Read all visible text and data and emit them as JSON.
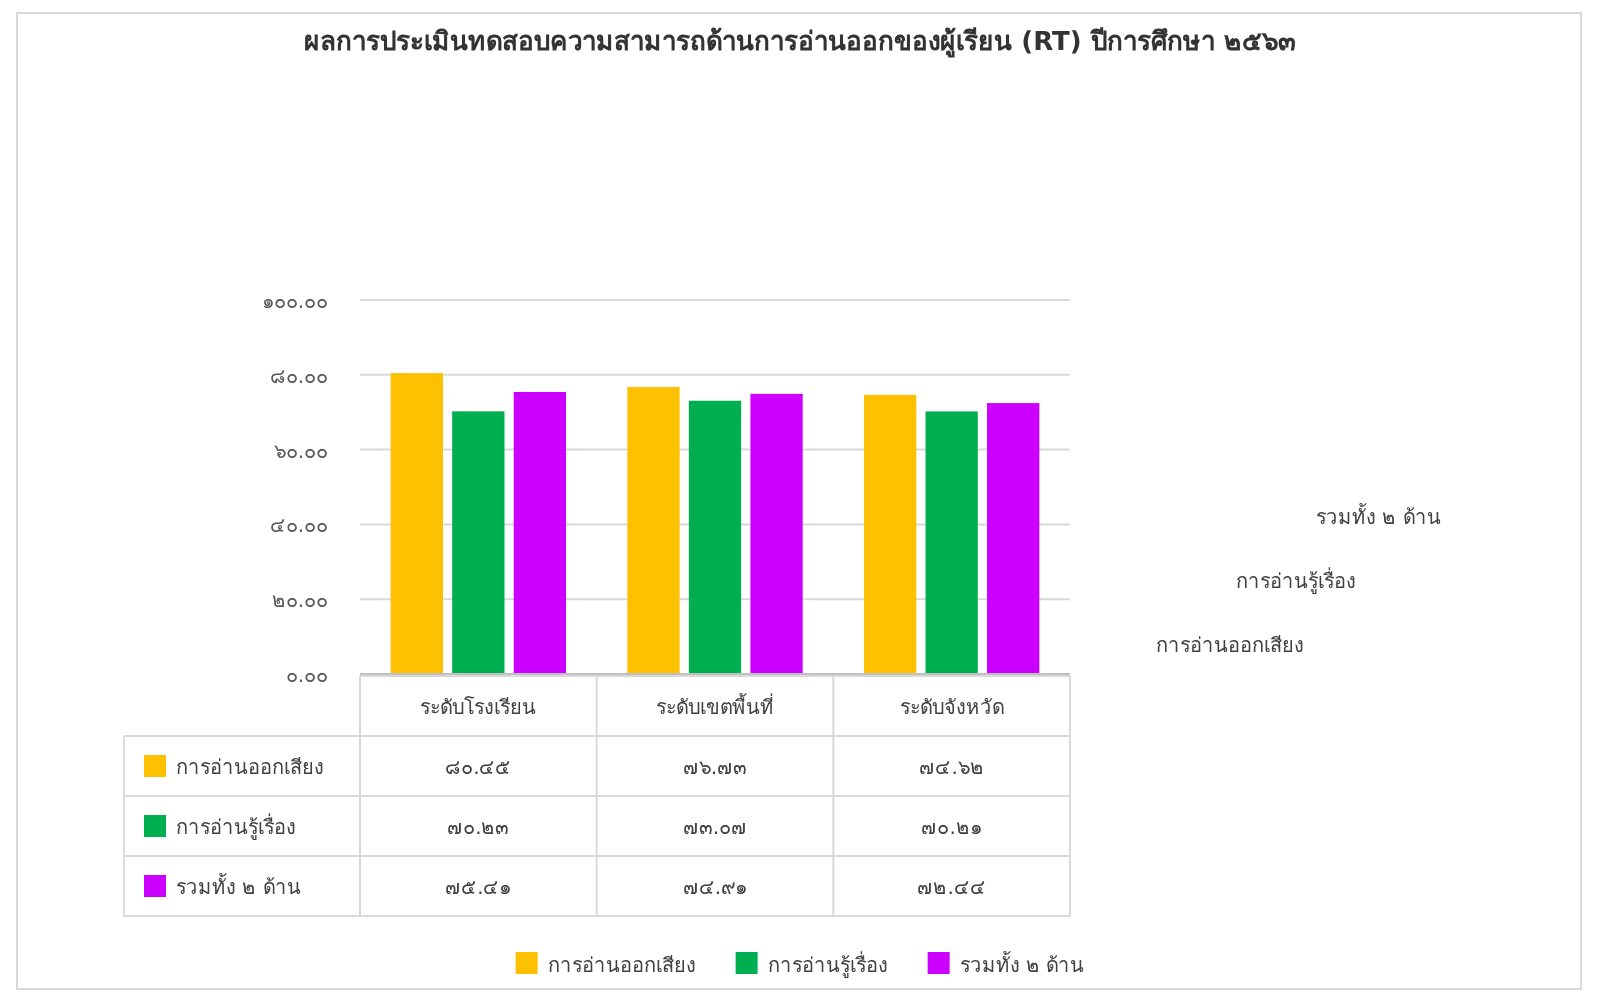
{
  "chart_data": {
    "type": "bar",
    "title": "ผลการประเมินทดสอบความสามารถด้านการอ่านออกของผู้เรียน (RT) ปีการศึกษา ๒๕๖๓",
    "categories": [
      "ระดับโรงเรียน",
      "ระดับเขตพื้นที่",
      "ระดับจังหวัด"
    ],
    "series": [
      {
        "name": "การอ่านออกเสียง",
        "color": "#ffc000",
        "values": [
          80.45,
          76.73,
          74.62
        ],
        "value_labels": [
          "๘๐.๔๕",
          "๗๖.๗๓",
          "๗๔.๖๒"
        ]
      },
      {
        "name": "การอ่านรู้เรื่อง",
        "color": "#00b050",
        "values": [
          70.23,
          73.07,
          70.21
        ],
        "value_labels": [
          "๗๐.๒๓",
          "๗๓.๐๗",
          "๗๐.๒๑"
        ]
      },
      {
        "name": "รวมทั้ง ๒ ด้าน",
        "color": "#cc00ff",
        "values": [
          75.41,
          74.91,
          72.44
        ],
        "value_labels": [
          "๗๕.๔๑",
          "๗๔.๙๑",
          "๗๒.๔๔"
        ]
      }
    ],
    "ylim": [
      0,
      100
    ],
    "yticks": [
      {
        "value": 0,
        "label": "๐.๐๐"
      },
      {
        "value": 20,
        "label": "๒๐.๐๐"
      },
      {
        "value": 40,
        "label": "๔๐.๐๐"
      },
      {
        "value": 60,
        "label": "๖๐.๐๐"
      },
      {
        "value": 80,
        "label": "๘๐.๐๐"
      },
      {
        "value": 100,
        "label": "๑๐๐.๐๐"
      }
    ],
    "grid": "y",
    "legend": "bottom"
  }
}
